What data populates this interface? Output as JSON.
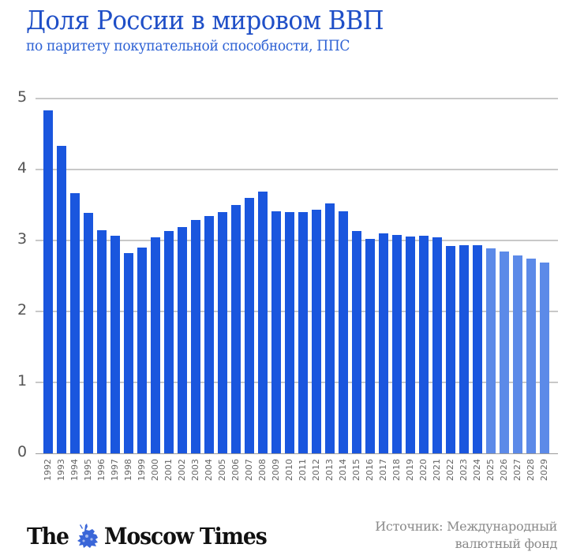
{
  "header": {
    "title": "Доля России в мировом ВВП",
    "subtitle": "по паритету покупательной способности, ППС"
  },
  "colors": {
    "actual": "#1a56de",
    "forecast": "#5c8ae8",
    "title": "#1f4fc7",
    "gridline": "#c8c8c8"
  },
  "footer": {
    "logo_left": "The",
    "logo_right": "Moscow Times",
    "logo_icon": "st-george-icon",
    "source_line1": "Источник: Международный",
    "source_line2": "валютный фонд"
  },
  "chart_data": {
    "type": "bar",
    "title": "Доля России в мировом ВВП",
    "subtitle": "по паритету покупательной способности, ППС",
    "xlabel": "",
    "ylabel": "",
    "ylim": [
      0,
      5
    ],
    "yticks": [
      0,
      1,
      2,
      3,
      4,
      5
    ],
    "grid": true,
    "legend": null,
    "categories": [
      "1992",
      "1993",
      "1994",
      "1995",
      "1996",
      "1997",
      "1998",
      "1999",
      "2000",
      "2001",
      "2002",
      "2003",
      "2004",
      "2005",
      "2006",
      "2007",
      "2008",
      "2009",
      "2010",
      "2011",
      "2012",
      "2013",
      "2014",
      "2015",
      "2016",
      "2017",
      "2018",
      "2019",
      "2020",
      "2021",
      "2022",
      "2023",
      "2024",
      "2025",
      "2026",
      "2027",
      "2028",
      "2029"
    ],
    "values": [
      4.83,
      4.33,
      3.67,
      3.39,
      3.15,
      3.07,
      2.82,
      2.9,
      3.05,
      3.13,
      3.19,
      3.29,
      3.35,
      3.4,
      3.5,
      3.6,
      3.69,
      3.41,
      3.4,
      3.4,
      3.43,
      3.52,
      3.41,
      3.13,
      3.02,
      3.1,
      3.08,
      3.06,
      3.07,
      3.05,
      2.92,
      2.93,
      2.93,
      2.89,
      2.84,
      2.79,
      2.74,
      2.69
    ],
    "forecast_from": "2025",
    "source": "Источник: Международный валютный фонд"
  }
}
